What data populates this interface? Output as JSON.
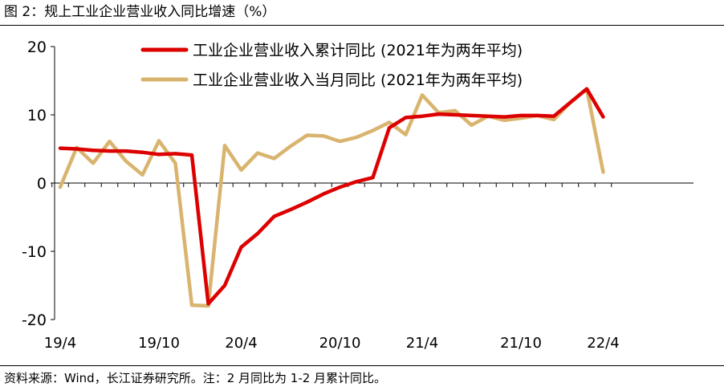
{
  "figure": {
    "title": "图 2：规上工业企业营业收入同比增速（%）",
    "source": "资料来源：Wind，长江证券研究所。注：2 月同比为 1-2 月累计同比。"
  },
  "colors": {
    "cumulative": "#dd0000",
    "monthly": "#d9b46e"
  },
  "chart_data": {
    "type": "line",
    "title": "",
    "xlabel": "",
    "ylabel": "",
    "ylim": [
      -20,
      20
    ],
    "yticks": [
      20,
      10,
      0,
      -10,
      -20
    ],
    "xtick_labels": [
      "19/4",
      "19/10",
      "20/4",
      "20/10",
      "21/4",
      "21/10",
      "22/4"
    ],
    "grid": false,
    "legend_position": "top",
    "x": [
      "19/4",
      "19/5",
      "19/6",
      "19/7",
      "19/8",
      "19/9",
      "19/10",
      "19/11",
      "19/12",
      "20/2",
      "20/3",
      "20/4",
      "20/5",
      "20/6",
      "20/7",
      "20/8",
      "20/9",
      "20/10",
      "20/11",
      "20/12",
      "21/2",
      "21/3",
      "21/4",
      "21/5",
      "21/6",
      "21/7",
      "21/8",
      "21/9",
      "21/10",
      "21/11",
      "21/12",
      "22/2",
      "22/3",
      "22/4"
    ],
    "series": [
      {
        "name": "工业企业营业收入累计同比 (2021年为两年平均)",
        "values": [
          5.1,
          5.0,
          4.8,
          4.7,
          4.7,
          4.5,
          4.2,
          4.3,
          4.1,
          -17.7,
          -15.0,
          -9.4,
          -7.4,
          -4.9,
          -3.9,
          -2.8,
          -1.6,
          -0.6,
          0.2,
          0.8,
          8.1,
          9.6,
          9.8,
          10.1,
          10.0,
          9.9,
          9.8,
          9.7,
          9.9,
          9.9,
          9.8,
          11.8,
          13.8,
          9.7
        ]
      },
      {
        "name": "工业企业营业收入当月同比 (2021年为两年平均)",
        "values": [
          -0.6,
          5.2,
          2.9,
          6.1,
          3.2,
          1.2,
          6.2,
          2.9,
          -17.9,
          -18.0,
          5.5,
          1.9,
          4.4,
          3.6,
          5.4,
          7.0,
          6.9,
          6.1,
          6.7,
          7.7,
          8.9,
          7.1,
          12.9,
          10.3,
          10.6,
          8.5,
          9.8,
          9.2,
          9.5,
          9.9,
          9.3,
          11.8,
          13.8,
          1.6
        ]
      }
    ]
  }
}
